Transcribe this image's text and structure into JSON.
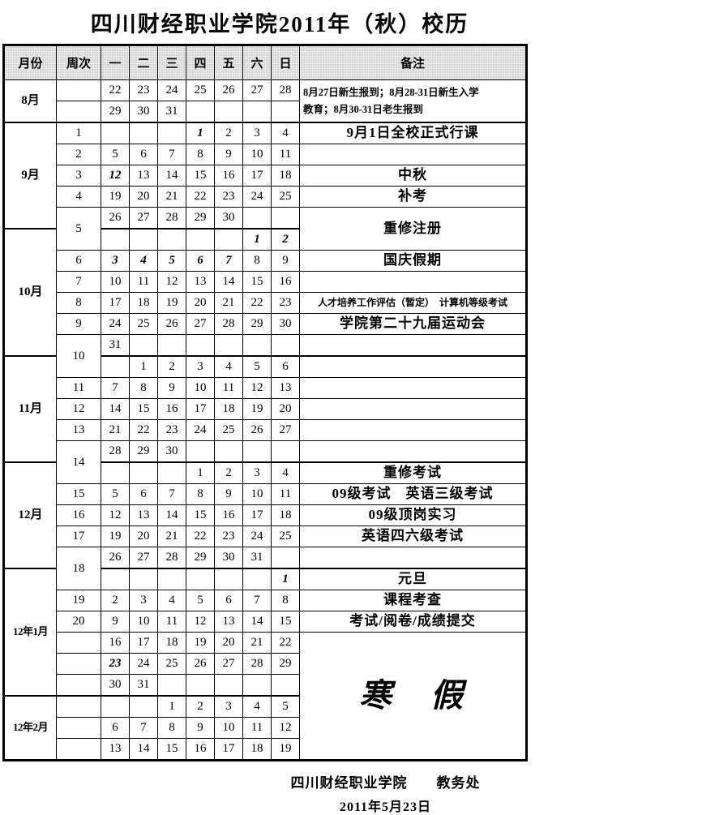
{
  "title": "四川财经职业学院2011年（秋）校历",
  "header": {
    "month": "月份",
    "week": "周次",
    "days": [
      "一",
      "二",
      "三",
      "四",
      "五",
      "六",
      "日"
    ],
    "note": "备注"
  },
  "rows": [
    {
      "m": {
        "t": "8月",
        "s": 2
      },
      "w": {
        "t": "",
        "s": 1
      },
      "d": [
        "22",
        "23",
        "24",
        "25",
        "26",
        "27",
        "28"
      ],
      "it": [],
      "n": {
        "t": "8月27日新生报到；8月28-31日新生入学\n教育；8月30-31日老生报到",
        "s": 2,
        "c": "left"
      }
    },
    {
      "w": {
        "t": "",
        "s": 1
      },
      "d": [
        "29",
        "30",
        "31",
        "",
        "",
        "",
        ""
      ],
      "it": []
    },
    {
      "ms": 1,
      "m": {
        "t": "9月",
        "s": 5
      },
      "w": {
        "t": "1",
        "s": 1
      },
      "d": [
        "",
        "",
        "",
        "1",
        "2",
        "3",
        "4"
      ],
      "it": [
        3
      ],
      "n": {
        "t": "9月1日全校正式行课",
        "s": 1
      }
    },
    {
      "w": {
        "t": "2",
        "s": 1
      },
      "d": [
        "5",
        "6",
        "7",
        "8",
        "9",
        "10",
        "11"
      ],
      "it": [],
      "n": {
        "t": "",
        "s": 1
      }
    },
    {
      "w": {
        "t": "3",
        "s": 1
      },
      "d": [
        "12",
        "13",
        "14",
        "15",
        "16",
        "17",
        "18"
      ],
      "it": [
        0
      ],
      "n": {
        "t": "中秋",
        "s": 1
      }
    },
    {
      "w": {
        "t": "4",
        "s": 1
      },
      "d": [
        "19",
        "20",
        "21",
        "22",
        "23",
        "24",
        "25"
      ],
      "it": [],
      "n": {
        "t": "补考",
        "s": 1
      }
    },
    {
      "w": {
        "t": "5",
        "s": 2
      },
      "d": [
        "26",
        "27",
        "28",
        "29",
        "30",
        "",
        ""
      ],
      "it": [],
      "n": {
        "t": "重修注册",
        "s": 2
      }
    },
    {
      "ms": 1,
      "m": {
        "t": "10月",
        "s": 6
      },
      "d": [
        "",
        "",
        "",
        "",
        "",
        "1",
        "2"
      ],
      "it": [
        5,
        6
      ]
    },
    {
      "w": {
        "t": "6",
        "s": 1
      },
      "d": [
        "3",
        "4",
        "5",
        "6",
        "7",
        "8",
        "9"
      ],
      "it": [
        0,
        1,
        2,
        3,
        4
      ],
      "n": {
        "t": "国庆假期",
        "s": 1
      }
    },
    {
      "w": {
        "t": "7",
        "s": 1
      },
      "d": [
        "10",
        "11",
        "12",
        "13",
        "14",
        "15",
        "16"
      ],
      "it": [],
      "n": {
        "t": "",
        "s": 1
      }
    },
    {
      "w": {
        "t": "8",
        "s": 1
      },
      "d": [
        "17",
        "18",
        "19",
        "20",
        "21",
        "22",
        "23"
      ],
      "it": [],
      "n": {
        "t": "人才培养工作评估（暂定）　计算机等级考试",
        "s": 1,
        "c": "sm"
      }
    },
    {
      "w": {
        "t": "9",
        "s": 1
      },
      "d": [
        "24",
        "25",
        "26",
        "27",
        "28",
        "29",
        "30"
      ],
      "it": [],
      "n": {
        "t": "学院第二十九届运动会",
        "s": 1
      }
    },
    {
      "w": {
        "t": "10",
        "s": 2
      },
      "d": [
        "31",
        "",
        "",
        "",
        "",
        "",
        ""
      ],
      "it": [],
      "n": {
        "t": "",
        "s": 1
      }
    },
    {
      "ms": 1,
      "m": {
        "t": "11月",
        "s": 5
      },
      "d": [
        "",
        "1",
        "2",
        "3",
        "4",
        "5",
        "6"
      ],
      "it": [],
      "n": {
        "t": "",
        "s": 1
      }
    },
    {
      "w": {
        "t": "11",
        "s": 1
      },
      "d": [
        "7",
        "8",
        "9",
        "10",
        "11",
        "12",
        "13"
      ],
      "it": [],
      "n": {
        "t": "",
        "s": 1
      }
    },
    {
      "w": {
        "t": "12",
        "s": 1
      },
      "d": [
        "14",
        "15",
        "16",
        "17",
        "18",
        "19",
        "20"
      ],
      "it": [],
      "n": {
        "t": "",
        "s": 1
      }
    },
    {
      "w": {
        "t": "13",
        "s": 1
      },
      "d": [
        "21",
        "22",
        "23",
        "24",
        "25",
        "26",
        "27"
      ],
      "it": [],
      "n": {
        "t": "",
        "s": 1
      }
    },
    {
      "w": {
        "t": "14",
        "s": 2
      },
      "d": [
        "28",
        "29",
        "30",
        "",
        "",
        "",
        ""
      ],
      "it": [],
      "n": {
        "t": "",
        "s": 1
      }
    },
    {
      "ms": 1,
      "m": {
        "t": "12月",
        "s": 5
      },
      "d": [
        "",
        "",
        "",
        "1",
        "2",
        "3",
        "4"
      ],
      "it": [],
      "n": {
        "t": "重修考试",
        "s": 1
      }
    },
    {
      "w": {
        "t": "15",
        "s": 1
      },
      "d": [
        "5",
        "6",
        "7",
        "8",
        "9",
        "10",
        "11"
      ],
      "it": [],
      "n": {
        "t": "09级考试　英语三级考试",
        "s": 1
      }
    },
    {
      "w": {
        "t": "16",
        "s": 1
      },
      "d": [
        "12",
        "13",
        "14",
        "15",
        "16",
        "17",
        "18"
      ],
      "it": [],
      "n": {
        "t": "09级顶岗实习",
        "s": 1
      }
    },
    {
      "w": {
        "t": "17",
        "s": 1
      },
      "d": [
        "19",
        "20",
        "21",
        "22",
        "23",
        "24",
        "25"
      ],
      "it": [],
      "n": {
        "t": "英语四六级考试",
        "s": 1
      }
    },
    {
      "w": {
        "t": "18",
        "s": 2
      },
      "d": [
        "26",
        "27",
        "28",
        "29",
        "30",
        "31",
        ""
      ],
      "it": [],
      "n": {
        "t": "",
        "s": 1
      }
    },
    {
      "ms": 1,
      "m": {
        "t": "12年1月",
        "s": 6
      },
      "d": [
        "",
        "",
        "",
        "",
        "",
        "",
        "1"
      ],
      "it": [
        6
      ],
      "n": {
        "t": "元旦",
        "s": 1
      }
    },
    {
      "w": {
        "t": "19",
        "s": 1
      },
      "d": [
        "2",
        "3",
        "4",
        "5",
        "6",
        "7",
        "8"
      ],
      "it": [],
      "n": {
        "t": "课程考查",
        "s": 1
      }
    },
    {
      "w": {
        "t": "20",
        "s": 1
      },
      "d": [
        "9",
        "10",
        "11",
        "12",
        "13",
        "14",
        "15"
      ],
      "it": [],
      "n": {
        "t": "考试/阅卷/成绩提交",
        "s": 1
      }
    },
    {
      "w": {
        "t": "",
        "s": 1
      },
      "d": [
        "16",
        "17",
        "18",
        "19",
        "20",
        "21",
        "22"
      ],
      "it": [],
      "n": {
        "t": "寒　假",
        "s": 6,
        "c": "big"
      }
    },
    {
      "w": {
        "t": "",
        "s": 1
      },
      "d": [
        "23",
        "24",
        "25",
        "26",
        "27",
        "28",
        "29"
      ],
      "it": [
        0
      ]
    },
    {
      "w": {
        "t": "",
        "s": 1
      },
      "d": [
        "30",
        "31",
        "",
        "",
        "",
        "",
        ""
      ],
      "it": []
    },
    {
      "ms": 1,
      "m": {
        "t": "12年2月",
        "s": 3
      },
      "w": {
        "t": "",
        "s": 1
      },
      "d": [
        "",
        "",
        "1",
        "2",
        "3",
        "4",
        "5"
      ],
      "it": []
    },
    {
      "w": {
        "t": "",
        "s": 1
      },
      "d": [
        "6",
        "7",
        "8",
        "9",
        "10",
        "11",
        "12"
      ],
      "it": []
    },
    {
      "w": {
        "t": "",
        "s": 1
      },
      "d": [
        "13",
        "14",
        "15",
        "16",
        "17",
        "18",
        "19"
      ],
      "it": []
    }
  ],
  "footer": {
    "line1": "四川财经职业学院　　教务处",
    "line2": "2011年5月23日"
  }
}
